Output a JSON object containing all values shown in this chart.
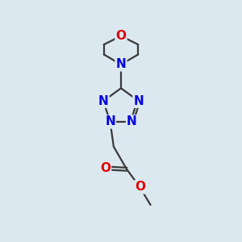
{
  "bg_color": "#dce8f0",
  "bond_color": "#3a3a3a",
  "N_color": "#0000e0",
  "O_color": "#e00000",
  "bond_width": 1.6,
  "font_size_atom": 11,
  "fig_width": 3.0,
  "fig_height": 3.0,
  "dpi": 100,
  "xlim": [
    0,
    10
  ],
  "ylim": [
    0,
    10
  ]
}
